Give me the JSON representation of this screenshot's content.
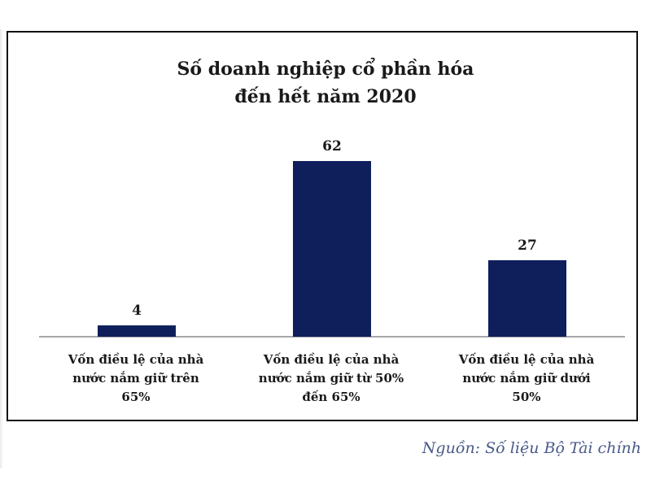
{
  "chart_data": {
    "type": "bar",
    "title_lines": [
      "Số doanh nghiệp cổ phần hóa",
      "đến hết năm 2020"
    ],
    "categories": [
      [
        "Vốn điều lệ của nhà",
        "nước nắm giữ trên",
        "65%"
      ],
      [
        "Vốn điều lệ của nhà",
        "nước nắm giữ từ 50%",
        "đến 65%"
      ],
      [
        "Vốn điều lệ của nhà",
        "nước nắm giữ dưới",
        "50%"
      ]
    ],
    "values": [
      4,
      62,
      27
    ],
    "data_labels": [
      "4",
      "62",
      "27"
    ],
    "ylim": [
      0,
      62
    ],
    "grid": false,
    "bar_color": "#0f1f5c"
  },
  "source_note": "Nguồn: Số liệu Bộ Tài chính"
}
